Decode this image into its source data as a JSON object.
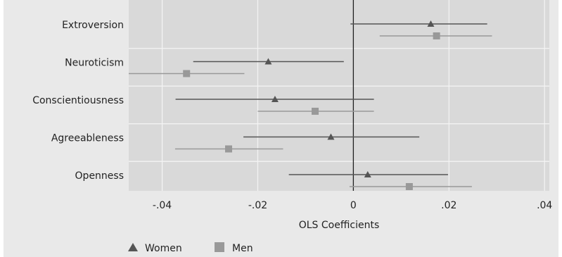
{
  "chart_data": {
    "type": "forest",
    "categories": [
      "Extroversion",
      "Neuroticism",
      "Conscientiousness",
      "Agreeableness",
      "Openness"
    ],
    "xlabel": "OLS Coefficients",
    "xlim": [
      -0.047,
      0.041
    ],
    "x_ticks": [
      -0.04,
      -0.02,
      0,
      0.02,
      0.04
    ],
    "x_tick_labels": [
      "-.04",
      "-.02",
      "0",
      ".02",
      ".04"
    ],
    "reference_line": 0,
    "grid": true,
    "legend_position": "bottom-left",
    "series": [
      {
        "name": "Women",
        "marker": "triangle",
        "color": "#555555",
        "values": [
          0.0162,
          -0.0178,
          -0.0164,
          -0.0047,
          0.003
        ],
        "ci_low": [
          -0.0006,
          -0.0335,
          -0.0372,
          -0.023,
          -0.0135
        ],
        "ci_high": [
          0.028,
          -0.002,
          0.0043,
          0.0138,
          0.0198
        ]
      },
      {
        "name": "Men",
        "marker": "square",
        "color": "#999999",
        "values": [
          0.0174,
          -0.0349,
          -0.008,
          -0.0261,
          0.0117
        ],
        "ci_low": [
          0.0055,
          -0.047,
          -0.02,
          -0.0373,
          -0.0008
        ],
        "ci_high": [
          0.029,
          -0.0228,
          0.0043,
          -0.0147,
          0.0248
        ]
      }
    ]
  },
  "colors": {
    "background": "#e9e9e9",
    "plot_area": "#d9d9d9",
    "grid": "#f4f4f4",
    "zero_line": "#222222",
    "text": "#222222"
  }
}
